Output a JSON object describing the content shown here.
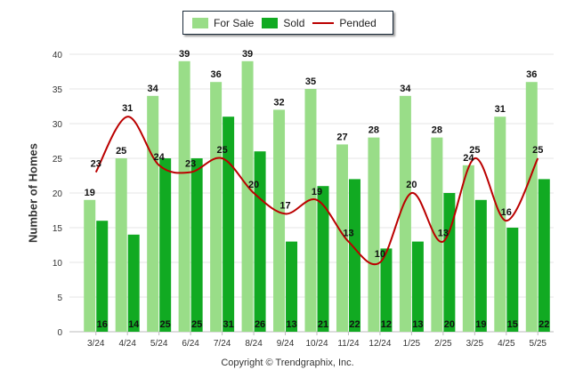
{
  "chart_data": {
    "type": "bar",
    "categories": [
      "3/24",
      "4/24",
      "5/24",
      "6/24",
      "7/24",
      "8/24",
      "9/24",
      "10/24",
      "11/24",
      "12/24",
      "1/25",
      "2/25",
      "3/25",
      "4/25",
      "5/25"
    ],
    "series": [
      {
        "name": "For Sale",
        "type": "bar",
        "color": "#99dd88",
        "values": [
          19,
          25,
          34,
          39,
          36,
          39,
          32,
          35,
          27,
          28,
          34,
          28,
          24,
          31,
          36
        ]
      },
      {
        "name": "Sold",
        "type": "bar",
        "color": "#11aa22",
        "values": [
          16,
          14,
          25,
          25,
          31,
          26,
          13,
          21,
          22,
          12,
          13,
          20,
          19,
          15,
          22
        ]
      },
      {
        "name": "Pended",
        "type": "line",
        "color": "#bb0000",
        "values": [
          23,
          31,
          24,
          23,
          25,
          20,
          17,
          19,
          13,
          10,
          20,
          13,
          25,
          16,
          25
        ]
      }
    ],
    "ylabel": "Number of Homes",
    "xlabel": "",
    "ylim": [
      0,
      40
    ],
    "yticks": [
      0,
      5,
      10,
      15,
      20,
      25,
      30,
      35,
      40
    ],
    "legend_position": "top-center",
    "grid": true
  },
  "legend": {
    "for_sale": "For Sale",
    "sold": "Sold",
    "pended": "Pended"
  },
  "copyright": "Copyright © Trendgraphix, Inc."
}
